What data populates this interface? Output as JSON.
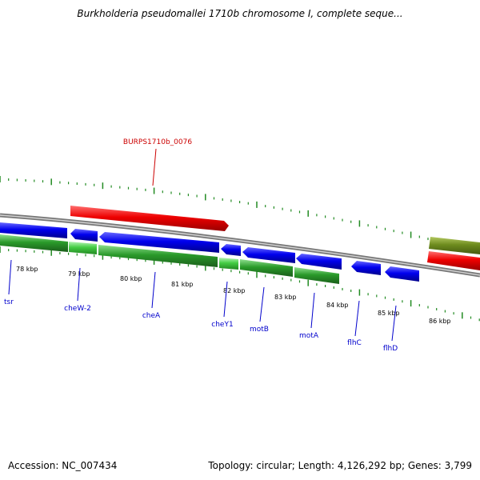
{
  "title": "Burkholderia pseudomallei 1710b chromosome I, complete seque...",
  "footer": {
    "accession": "Accession: NC_007434",
    "summary": "Topology: circular; Length: 4,126,292 bp; Genes: 3,799"
  },
  "colors": {
    "forward_gene": "#0000ee",
    "cds": "#2a9a2a",
    "highlight": "#ee0000",
    "other_feature": "#6e8c1e",
    "tick": "#228b22",
    "gene_label": "#0000cc",
    "highlight_label": "#cc0000",
    "backbone": "#888888"
  },
  "highlight_label": "BURPS1710b_0076",
  "kbp_labels": [
    "78 kbp",
    "79 kbp",
    "80 kbp",
    "81 kbp",
    "82 kbp",
    "83 kbp",
    "84 kbp",
    "85 kbp",
    "86 kbp"
  ],
  "genes": [
    "tsr",
    "cheW-2",
    "cheA",
    "cheY1",
    "motB",
    "motA",
    "flhC",
    "flhD"
  ]
}
